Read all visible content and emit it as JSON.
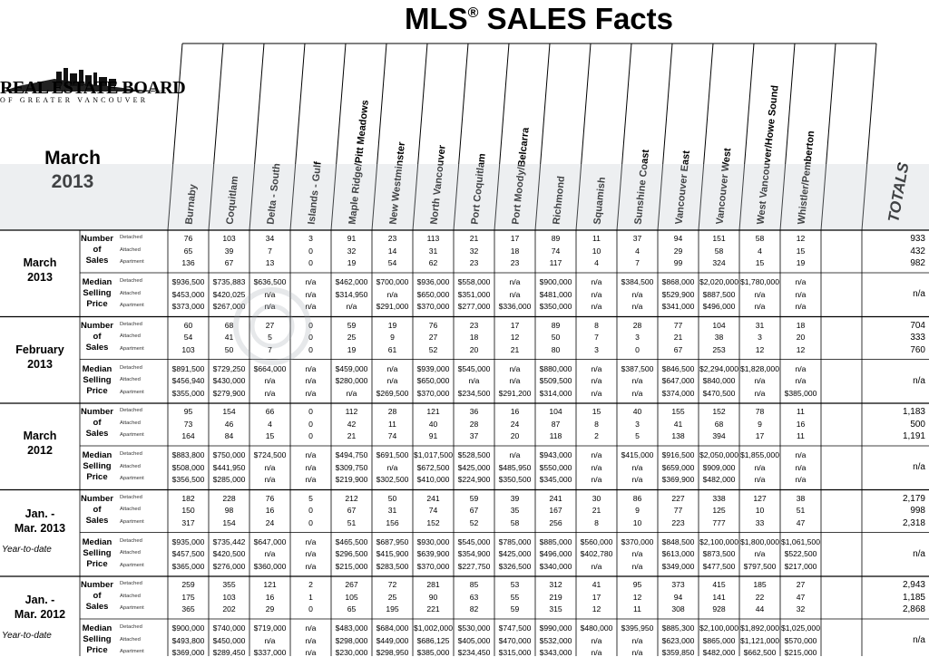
{
  "title": {
    "main": "MLS",
    "reg": "®",
    "rest": " SALES Facts"
  },
  "logo": {
    "name": "REAL ESTATE BOARD",
    "sub": "OF GREATER VANCOUVER"
  },
  "period_title": {
    "line1": "March",
    "line2": "2013"
  },
  "columns": [
    "Burnaby",
    "Coquitlam",
    "Delta - South",
    "Islands - Gulf",
    "Maple Ridge/Pitt Meadows",
    "New Westminster",
    "North Vancouver",
    "Port Coquitlam",
    "Port Moody/Belcarra",
    "Richmond",
    "Squamish",
    "Sunshine Coast",
    "Vancouver East",
    "Vancouver West",
    "West Vancouver/Howe Sound",
    "Whistler/Pemberton"
  ],
  "totals_label": "TOTALS",
  "row_labels": {
    "number": [
      "Number",
      "of",
      "Sales"
    ],
    "median": [
      "Median",
      "Selling",
      "Price"
    ]
  },
  "sub_labels": [
    "Detached",
    "Attached",
    "Apartment"
  ],
  "blocks": [
    {
      "label": [
        "March",
        "2013"
      ],
      "ytd": "",
      "sales": [
        [
          "76",
          "103",
          "34",
          "3",
          "91",
          "23",
          "113",
          "21",
          "17",
          "89",
          "11",
          "37",
          "94",
          "151",
          "58",
          "12",
          "933"
        ],
        [
          "65",
          "39",
          "7",
          "0",
          "32",
          "14",
          "31",
          "32",
          "18",
          "74",
          "10",
          "4",
          "29",
          "58",
          "4",
          "15",
          "432"
        ],
        [
          "136",
          "67",
          "13",
          "0",
          "19",
          "54",
          "62",
          "23",
          "23",
          "117",
          "4",
          "7",
          "99",
          "324",
          "15",
          "19",
          "982"
        ]
      ],
      "price": [
        [
          "$936,500",
          "$735,883",
          "$636,500",
          "n/a",
          "$462,000",
          "$700,000",
          "$936,000",
          "$558,000",
          "n/a",
          "$900,000",
          "n/a",
          "$384,500",
          "$868,000",
          "$2,020,000",
          "$1,780,000",
          "n/a"
        ],
        [
          "$453,000",
          "$420,025",
          "n/a",
          "n/a",
          "$314,950",
          "n/a",
          "$650,000",
          "$351,000",
          "n/a",
          "$481,000",
          "n/a",
          "n/a",
          "$529,900",
          "$887,500",
          "n/a",
          "n/a"
        ],
        [
          "$373,000",
          "$267,000",
          "n/a",
          "n/a",
          "n/a",
          "$291,000",
          "$370,000",
          "$277,000",
          "$336,000",
          "$350,000",
          "n/a",
          "n/a",
          "$341,000",
          "$496,000",
          "n/a",
          "n/a"
        ]
      ],
      "price_total": "n/a"
    },
    {
      "label": [
        "February",
        "2013"
      ],
      "ytd": "",
      "sales": [
        [
          "60",
          "68",
          "27",
          "0",
          "59",
          "19",
          "76",
          "23",
          "17",
          "89",
          "8",
          "28",
          "77",
          "104",
          "31",
          "18",
          "704"
        ],
        [
          "54",
          "41",
          "5",
          "0",
          "25",
          "9",
          "27",
          "18",
          "12",
          "50",
          "7",
          "3",
          "21",
          "38",
          "3",
          "20",
          "333"
        ],
        [
          "103",
          "50",
          "7",
          "0",
          "19",
          "61",
          "52",
          "20",
          "21",
          "80",
          "3",
          "0",
          "67",
          "253",
          "12",
          "12",
          "760"
        ]
      ],
      "price": [
        [
          "$891,500",
          "$729,250",
          "$664,000",
          "n/a",
          "$459,000",
          "n/a",
          "$939,000",
          "$545,000",
          "n/a",
          "$880,000",
          "n/a",
          "$387,500",
          "$846,500",
          "$2,294,000",
          "$1,828,000",
          "n/a"
        ],
        [
          "$456,940",
          "$430,000",
          "n/a",
          "n/a",
          "$280,000",
          "n/a",
          "$650,000",
          "n/a",
          "n/a",
          "$509,500",
          "n/a",
          "n/a",
          "$647,000",
          "$840,000",
          "n/a",
          "n/a"
        ],
        [
          "$355,000",
          "$279,900",
          "n/a",
          "n/a",
          "n/a",
          "$269,500",
          "$370,000",
          "$234,500",
          "$291,200",
          "$314,000",
          "n/a",
          "n/a",
          "$374,000",
          "$470,500",
          "n/a",
          "$385,000"
        ]
      ],
      "price_total": "n/a"
    },
    {
      "label": [
        "March",
        "2012"
      ],
      "ytd": "",
      "sales": [
        [
          "95",
          "154",
          "66",
          "0",
          "112",
          "28",
          "121",
          "36",
          "16",
          "104",
          "15",
          "40",
          "155",
          "152",
          "78",
          "11",
          "1,183"
        ],
        [
          "73",
          "46",
          "4",
          "0",
          "42",
          "11",
          "40",
          "28",
          "24",
          "87",
          "8",
          "3",
          "41",
          "68",
          "9",
          "16",
          "500"
        ],
        [
          "164",
          "84",
          "15",
          "0",
          "21",
          "74",
          "91",
          "37",
          "20",
          "118",
          "2",
          "5",
          "138",
          "394",
          "17",
          "11",
          "1,191"
        ]
      ],
      "price": [
        [
          "$883,800",
          "$750,000",
          "$724,500",
          "n/a",
          "$494,750",
          "$691,500",
          "$1,017,500",
          "$528,500",
          "n/a",
          "$943,000",
          "n/a",
          "$415,000",
          "$916,500",
          "$2,050,000",
          "$1,855,000",
          "n/a"
        ],
        [
          "$508,000",
          "$441,950",
          "n/a",
          "n/a",
          "$309,750",
          "n/a",
          "$672,500",
          "$425,000",
          "$485,950",
          "$550,000",
          "n/a",
          "n/a",
          "$659,000",
          "$909,000",
          "n/a",
          "n/a"
        ],
        [
          "$356,500",
          "$285,000",
          "n/a",
          "n/a",
          "$219,900",
          "$302,500",
          "$410,000",
          "$224,900",
          "$350,500",
          "$345,000",
          "n/a",
          "n/a",
          "$369,900",
          "$482,000",
          "n/a",
          "n/a"
        ]
      ],
      "price_total": "n/a"
    },
    {
      "label": [
        "Jan. -",
        "Mar. 2013"
      ],
      "ytd": "Year-to-date",
      "sales": [
        [
          "182",
          "228",
          "76",
          "5",
          "212",
          "50",
          "241",
          "59",
          "39",
          "241",
          "30",
          "86",
          "227",
          "338",
          "127",
          "38",
          "2,179"
        ],
        [
          "150",
          "98",
          "16",
          "0",
          "67",
          "31",
          "74",
          "67",
          "35",
          "167",
          "21",
          "9",
          "77",
          "125",
          "10",
          "51",
          "998"
        ],
        [
          "317",
          "154",
          "24",
          "0",
          "51",
          "156",
          "152",
          "52",
          "58",
          "256",
          "8",
          "10",
          "223",
          "777",
          "33",
          "47",
          "2,318"
        ]
      ],
      "price": [
        [
          "$935,000",
          "$735,442",
          "$647,000",
          "n/a",
          "$465,500",
          "$687,950",
          "$930,000",
          "$545,000",
          "$785,000",
          "$885,000",
          "$560,000",
          "$370,000",
          "$848,500",
          "$2,100,000",
          "$1,800,000",
          "$1,061,500"
        ],
        [
          "$457,500",
          "$420,500",
          "n/a",
          "n/a",
          "$296,500",
          "$415,900",
          "$639,900",
          "$354,900",
          "$425,000",
          "$496,000",
          "$402,780",
          "n/a",
          "$613,000",
          "$873,500",
          "n/a",
          "$522,500"
        ],
        [
          "$365,000",
          "$276,000",
          "$360,000",
          "n/a",
          "$215,000",
          "$283,500",
          "$370,000",
          "$227,750",
          "$326,500",
          "$340,000",
          "n/a",
          "n/a",
          "$349,000",
          "$477,500",
          "$797,500",
          "$217,000"
        ]
      ],
      "price_total": "n/a"
    },
    {
      "label": [
        "Jan. -",
        "Mar. 2012"
      ],
      "ytd": "Year-to-date",
      "sales": [
        [
          "259",
          "355",
          "121",
          "2",
          "267",
          "72",
          "281",
          "85",
          "53",
          "312",
          "41",
          "95",
          "373",
          "415",
          "185",
          "27",
          "2,943"
        ],
        [
          "175",
          "103",
          "16",
          "1",
          "105",
          "25",
          "90",
          "63",
          "55",
          "219",
          "17",
          "12",
          "94",
          "141",
          "22",
          "47",
          "1,185"
        ],
        [
          "365",
          "202",
          "29",
          "0",
          "65",
          "195",
          "221",
          "82",
          "59",
          "315",
          "12",
          "11",
          "308",
          "928",
          "44",
          "32",
          "2,868"
        ]
      ],
      "price": [
        [
          "$900,000",
          "$740,000",
          "$719,000",
          "n/a",
          "$483,000",
          "$684,000",
          "$1,002,000",
          "$530,000",
          "$747,500",
          "$990,000",
          "$480,000",
          "$395,950",
          "$885,300",
          "$2,100,000",
          "$1,892,000",
          "$1,025,000"
        ],
        [
          "$493,800",
          "$450,000",
          "n/a",
          "n/a",
          "$298,000",
          "$449,000",
          "$686,125",
          "$405,000",
          "$470,000",
          "$532,000",
          "n/a",
          "n/a",
          "$623,000",
          "$865,000",
          "$1,121,000",
          "$570,000"
        ],
        [
          "$369,000",
          "$289,450",
          "$337,000",
          "n/a",
          "$230,000",
          "$298,950",
          "$385,000",
          "$234,450",
          "$315,000",
          "$343,000",
          "n/a",
          "n/a",
          "$359,850",
          "$482,000",
          "$662,500",
          "$215,000"
        ]
      ],
      "price_total": "n/a"
    }
  ]
}
